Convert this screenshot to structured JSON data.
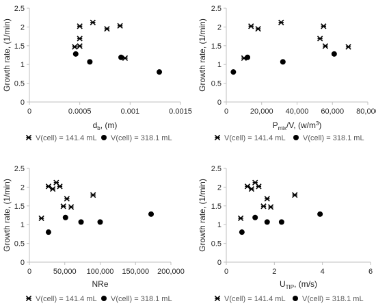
{
  "colors": {
    "marker": "#000000",
    "axis": "#bfbfbf",
    "legend_text": "#595959"
  },
  "chart_data": [
    {
      "type": "scatter",
      "xlabel": "d",
      "xlabel_sub": "b",
      "xlabel_unit": ", (m)",
      "ylabel": "Growth rate, (1/min)",
      "xlim": [
        0,
        0.0015
      ],
      "ylim": [
        0,
        2.5
      ],
      "xticks": [
        0,
        0.0005,
        0.001,
        0.0015
      ],
      "xtick_labels": [
        "0",
        "0.0005",
        "0.001",
        "0.0015"
      ],
      "yticks": [
        0,
        0.5,
        1,
        1.5,
        2,
        2.5
      ],
      "ytick_labels": [
        "0",
        "0.5",
        "1",
        "1.5",
        "2",
        "2.5"
      ],
      "grid": false,
      "legend_placement": "bottom",
      "series": [
        {
          "name": "V(cell) = 141.4 mL",
          "marker": "asterisk",
          "x": [
            0.00045,
            0.0005,
            0.0005,
            0.0005,
            0.00063,
            0.00077,
            0.0009,
            0.00095
          ],
          "y": [
            1.47,
            1.49,
            1.69,
            2.02,
            2.12,
            1.95,
            2.03,
            1.17
          ]
        },
        {
          "name": "V(cell) = 318.1 mL",
          "marker": "circle",
          "x": [
            0.00046,
            0.0006,
            0.00091,
            0.00129
          ],
          "y": [
            1.28,
            1.07,
            1.19,
            0.8
          ]
        }
      ]
    },
    {
      "type": "scatter",
      "xlabel": "P",
      "xlabel_sub": "mix",
      "xlabel_unit": "/V, (w/m",
      "xlabel_sup": "3",
      "xlabel_close": ")",
      "ylabel": "Growth rate, (1/min)",
      "xlim": [
        0,
        80000
      ],
      "ylim": [
        0,
        2.5
      ],
      "xticks": [
        0,
        20000,
        40000,
        60000,
        80000
      ],
      "xtick_labels": [
        "0",
        "20,000",
        "40,000",
        "60,000",
        "80,000"
      ],
      "yticks": [
        0,
        0.5,
        1,
        1.5,
        2,
        2.5
      ],
      "ytick_labels": [
        "0",
        "0.5",
        "1",
        "1.5",
        "2",
        "2.5"
      ],
      "grid": false,
      "legend_placement": "bottom",
      "series": [
        {
          "name": "V(cell) = 141.4 mL",
          "marker": "asterisk",
          "x": [
            10000,
            14000,
            18000,
            31000,
            53000,
            55000,
            56000,
            69000
          ],
          "y": [
            1.17,
            2.02,
            1.95,
            2.12,
            1.69,
            2.02,
            1.49,
            1.47
          ]
        },
        {
          "name": "V(cell) = 318.1 mL",
          "marker": "circle",
          "x": [
            4000,
            12000,
            32000,
            61000
          ],
          "y": [
            0.8,
            1.19,
            1.07,
            1.28
          ]
        }
      ]
    },
    {
      "type": "scatter",
      "xlabel": "NRe",
      "ylabel": "Growth rate, (1/min)",
      "xlim": [
        0,
        200000
      ],
      "ylim": [
        0,
        2.5
      ],
      "xticks": [
        0,
        50000,
        100000,
        150000,
        200000
      ],
      "xtick_labels": [
        "0",
        "50,000",
        "100,000",
        "150,000",
        "200,000"
      ],
      "yticks": [
        0,
        0.5,
        1,
        1.5,
        2,
        2.5
      ],
      "ytick_labels": [
        "0",
        "0.5",
        "1",
        "1.5",
        "2",
        "2.5"
      ],
      "grid": false,
      "legend_placement": "bottom",
      "series": [
        {
          "name": "V(cell) = 141.4 mL",
          "marker": "asterisk",
          "x": [
            17000,
            27000,
            33000,
            38000,
            43000,
            48000,
            53000,
            59000,
            90000
          ],
          "y": [
            1.17,
            2.02,
            1.95,
            2.12,
            2.02,
            1.49,
            1.69,
            1.47,
            1.79
          ]
        },
        {
          "name": "V(cell) = 318.1 mL",
          "marker": "circle",
          "x": [
            27000,
            51000,
            73000,
            100000,
            172000
          ],
          "y": [
            0.8,
            1.19,
            1.07,
            1.07,
            1.28
          ]
        }
      ]
    },
    {
      "type": "scatter",
      "xlabel": "U",
      "xlabel_sub": "TIP",
      "xlabel_unit": ", (m/s)",
      "ylabel": "Growth rate, (1/min)",
      "xlim": [
        0,
        6
      ],
      "ylim": [
        0,
        2.5
      ],
      "xticks": [
        0,
        2,
        4,
        6
      ],
      "xtick_labels": [
        "0",
        "2",
        "4",
        "6"
      ],
      "yticks": [
        0,
        0.5,
        1,
        1.5,
        2,
        2.5
      ],
      "ytick_labels": [
        "0",
        "0.5",
        "1",
        "1.5",
        "2",
        "2.5"
      ],
      "grid": false,
      "legend_placement": "bottom",
      "series": [
        {
          "name": "V(cell) = 141.4 mL",
          "marker": "asterisk",
          "x": [
            0.6,
            0.88,
            1.05,
            1.2,
            1.35,
            1.55,
            1.7,
            1.85,
            2.85
          ],
          "y": [
            1.17,
            2.02,
            1.95,
            2.12,
            2.02,
            1.49,
            1.69,
            1.47,
            1.79
          ]
        },
        {
          "name": "V(cell) = 318.1 mL",
          "marker": "circle",
          "x": [
            0.65,
            1.2,
            1.7,
            2.3,
            3.9
          ],
          "y": [
            0.8,
            1.19,
            1.07,
            1.07,
            1.28
          ]
        }
      ]
    }
  ]
}
